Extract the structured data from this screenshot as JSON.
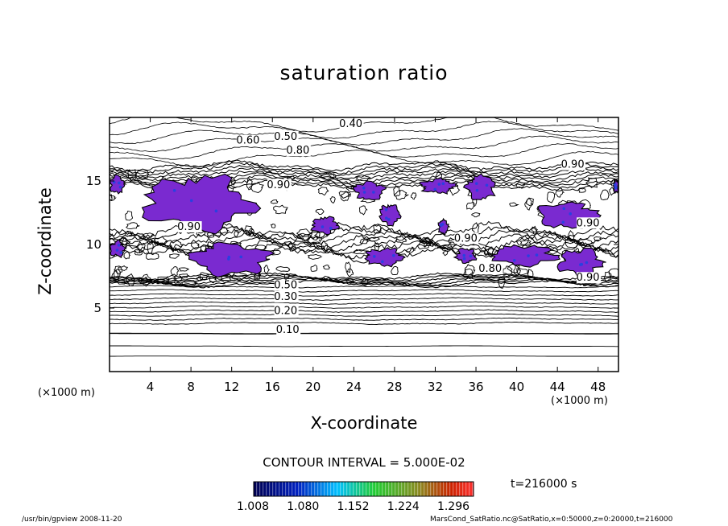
{
  "chart_data": {
    "type": "contour",
    "title": "saturation ratio",
    "xlabel": "X-coordinate",
    "ylabel": "Z-coordinate",
    "x_unit": "(×1000 m)",
    "z_unit": "(×1000 m)",
    "xlim": [
      0,
      50
    ],
    "zlim": [
      0,
      20
    ],
    "x_ticks": [
      4,
      8,
      12,
      16,
      20,
      24,
      28,
      32,
      36,
      40,
      44,
      48
    ],
    "z_ticks": [
      5,
      10,
      15
    ],
    "contour_interval_text": "CONTOUR INTERVAL = 5.000E-02",
    "contour_labels": [
      {
        "text": "0.40",
        "x": 23.7,
        "z": 19.3
      },
      {
        "text": "0.60",
        "x": 13.6,
        "z": 18.0
      },
      {
        "text": "0.50",
        "x": 17.3,
        "z": 18.3
      },
      {
        "text": "0.80",
        "x": 18.5,
        "z": 17.2
      },
      {
        "text": "0.90",
        "x": 45.5,
        "z": 16.1
      },
      {
        "text": "0.90",
        "x": 16.6,
        "z": 14.5
      },
      {
        "text": "0.90",
        "x": 7.8,
        "z": 11.2
      },
      {
        "text": "0.90",
        "x": 35.0,
        "z": 10.3
      },
      {
        "text": "0.90",
        "x": 47.0,
        "z": 11.5
      },
      {
        "text": "0.80",
        "x": 37.4,
        "z": 7.9
      },
      {
        "text": "0.90",
        "x": 47.0,
        "z": 7.2
      },
      {
        "text": "0.50",
        "x": 17.3,
        "z": 6.6
      },
      {
        "text": "0.30",
        "x": 17.3,
        "z": 5.7
      },
      {
        "text": "0.20",
        "x": 17.3,
        "z": 4.6
      },
      {
        "text": "0.10",
        "x": 17.5,
        "z": 3.1
      }
    ],
    "shading": {
      "colorbar_ticks": [
        1.008,
        1.08,
        1.152,
        1.224,
        1.296
      ],
      "color_low": "#000080",
      "color_mid_low": "#00bfff",
      "color_mid": "#22cc22",
      "color_high": "#cc2200",
      "fill_color": "#7a2ad0"
    },
    "supersaturated_regions": [
      {
        "x": [
          3,
          14
        ],
        "z": [
          11,
          15.5
        ]
      },
      {
        "x": [
          0,
          1.5
        ],
        "z": [
          14,
          15.5
        ]
      },
      {
        "x": [
          24,
          27
        ],
        "z": [
          13.5,
          15
        ]
      },
      {
        "x": [
          26.5,
          28.5
        ],
        "z": [
          11.5,
          13.2
        ]
      },
      {
        "x": [
          19.8,
          22.5
        ],
        "z": [
          10.8,
          12.2
        ]
      },
      {
        "x": [
          30.5,
          34
        ],
        "z": [
          14,
          15.2
        ]
      },
      {
        "x": [
          32.3,
          33.3
        ],
        "z": [
          10.8,
          12
        ]
      },
      {
        "x": [
          35,
          38
        ],
        "z": [
          13.5,
          15.5
        ]
      },
      {
        "x": [
          42,
          48
        ],
        "z": [
          11.2,
          13.4
        ]
      },
      {
        "x": [
          8,
          16
        ],
        "z": [
          7.5,
          10.2
        ]
      },
      {
        "x": [
          0,
          1.5
        ],
        "z": [
          9,
          10.3
        ]
      },
      {
        "x": [
          25,
          29
        ],
        "z": [
          8.3,
          9.7
        ]
      },
      {
        "x": [
          34,
          36
        ],
        "z": [
          8.5,
          9.7
        ]
      },
      {
        "x": [
          37.5,
          44
        ],
        "z": [
          8.3,
          10
        ]
      },
      {
        "x": [
          44,
          48.5
        ],
        "z": [
          7.5,
          9.7
        ]
      },
      {
        "x": [
          49.5,
          50
        ],
        "z": [
          14,
          15.2
        ]
      }
    ],
    "grid": false,
    "legend": "colorbar-bottom"
  },
  "time_label": "t=216000 s",
  "footer": {
    "left": "/usr/bin/gpview   2008-11-20",
    "right": "MarsCond_SatRatio.nc@SatRatio,x=0:50000,z=0:20000,t=216000"
  }
}
